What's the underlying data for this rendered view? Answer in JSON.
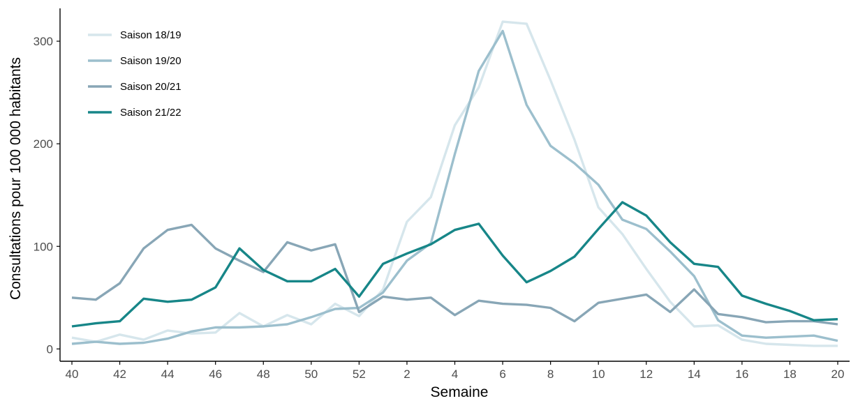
{
  "chart_data": {
    "type": "line",
    "xlabel": "Semaine",
    "ylabel": "Consultations pour 100 000 habitants",
    "categories": [
      "40",
      "41",
      "42",
      "43",
      "44",
      "45",
      "46",
      "47",
      "48",
      "49",
      "50",
      "51",
      "52",
      "1",
      "2",
      "3",
      "4",
      "5",
      "6",
      "7",
      "8",
      "9",
      "10",
      "11",
      "12",
      "13",
      "14",
      "15",
      "16",
      "17",
      "18",
      "19",
      "20"
    ],
    "x_tick_labels": [
      "40",
      "42",
      "44",
      "46",
      "48",
      "50",
      "52",
      "2",
      "4",
      "6",
      "8",
      "10",
      "12",
      "14",
      "16",
      "18",
      "20"
    ],
    "ylim": [
      -12,
      332
    ],
    "y_ticks": [
      0,
      100,
      200,
      300
    ],
    "grid": false,
    "legend_position": "top-left",
    "series": [
      {
        "name": "Saison 18/19",
        "color": "#d6e6ec",
        "values": [
          11,
          7,
          14,
          9,
          18,
          15,
          16,
          35,
          22,
          33,
          24,
          44,
          32,
          58,
          124,
          148,
          218,
          255,
          319,
          317,
          262,
          204,
          138,
          112,
          78,
          46,
          22,
          23,
          9,
          5,
          4,
          3,
          3
        ]
      },
      {
        "name": "Saison 19/20",
        "color": "#9cbfcd",
        "values": [
          5,
          7,
          5,
          6,
          10,
          17,
          21,
          21,
          22,
          24,
          31,
          39,
          40,
          55,
          86,
          103,
          190,
          271,
          310,
          238,
          198,
          181,
          160,
          126,
          117,
          95,
          71,
          28,
          13,
          11,
          12,
          13,
          8
        ]
      },
      {
        "name": "Saison 20/21",
        "color": "#88a6b6",
        "values": [
          50,
          48,
          64,
          98,
          116,
          121,
          98,
          86,
          75,
          104,
          96,
          102,
          36,
          51,
          48,
          50,
          33,
          47,
          44,
          43,
          40,
          27,
          45,
          49,
          53,
          36,
          58,
          34,
          31,
          26,
          27,
          27,
          24
        ]
      },
      {
        "name": "Saison 21/22",
        "color": "#178688",
        "values": [
          22,
          25,
          27,
          49,
          46,
          48,
          60,
          98,
          77,
          66,
          66,
          78,
          51,
          83,
          93,
          102,
          116,
          122,
          91,
          65,
          76,
          90,
          117,
          143,
          130,
          104,
          83,
          80,
          52,
          44,
          37,
          28,
          29
        ]
      }
    ]
  }
}
